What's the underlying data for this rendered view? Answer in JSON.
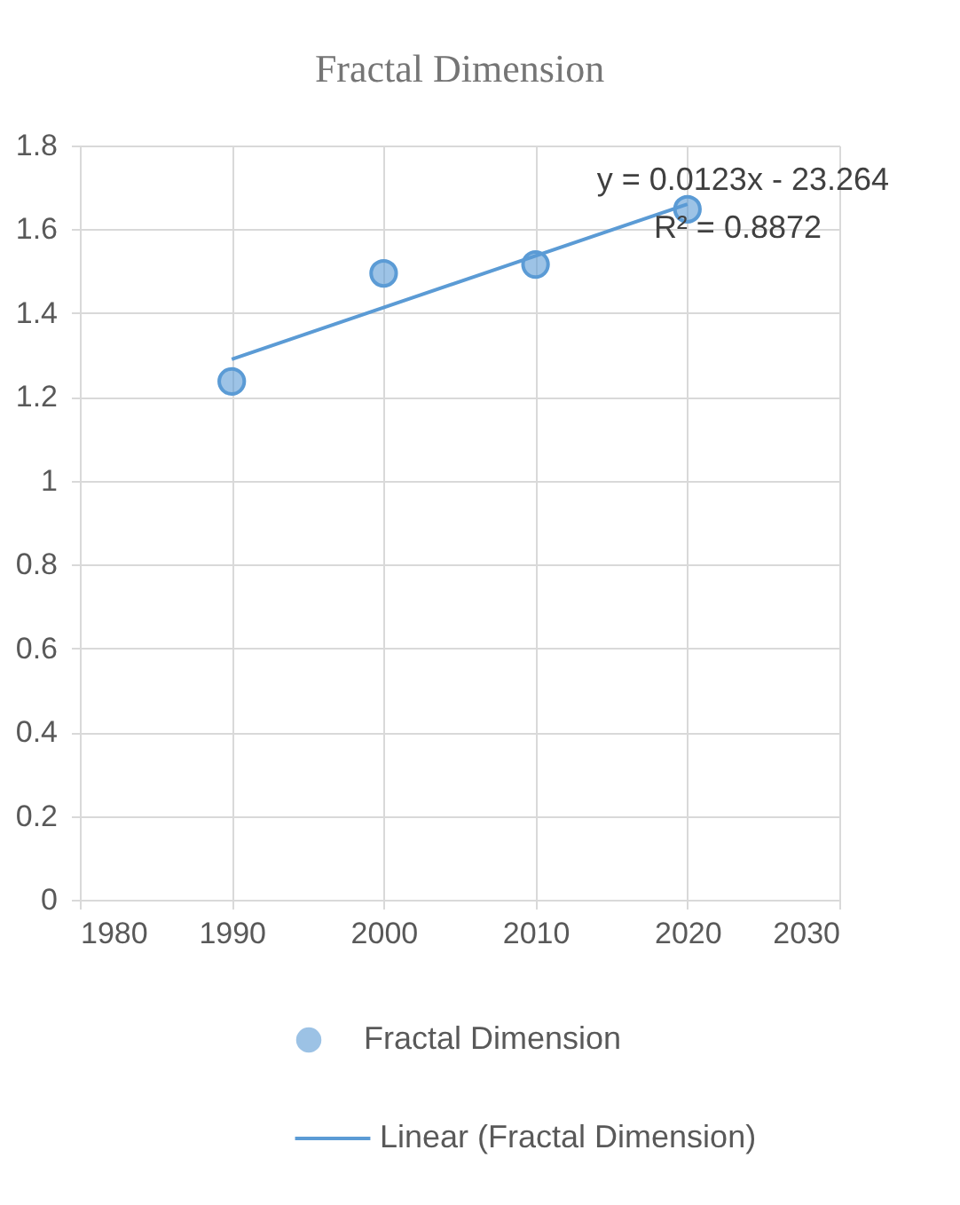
{
  "chart_data": {
    "type": "scatter",
    "title": "Fractal Dimension",
    "x": [
      1990,
      2000,
      2010,
      2020
    ],
    "series": [
      {
        "name": "Fractal Dimension",
        "type": "scatter",
        "color": "#5b9bd5",
        "values": [
          1.237,
          1.495,
          1.516,
          1.648
        ],
        "marker": "circle"
      },
      {
        "name": "Linear (Fractal Dimension)",
        "type": "line",
        "color": "#5b9bd5",
        "x": [
          1990,
          2020
        ],
        "values": [
          1.29,
          1.66
        ],
        "line_style": "solid"
      }
    ],
    "annotations": [
      "y = 0.0123x - 23.264",
      "R² = 0.8872"
    ],
    "xlim": [
      1980,
      2030
    ],
    "xticks": [
      1980,
      1990,
      2000,
      2010,
      2020,
      2030
    ],
    "ylim": [
      0,
      1.8
    ],
    "yticks": [
      0,
      0.2,
      0.4,
      0.6,
      0.8,
      1,
      1.2,
      1.4,
      1.6,
      1.8
    ],
    "grid": true,
    "legend": "bottom"
  }
}
